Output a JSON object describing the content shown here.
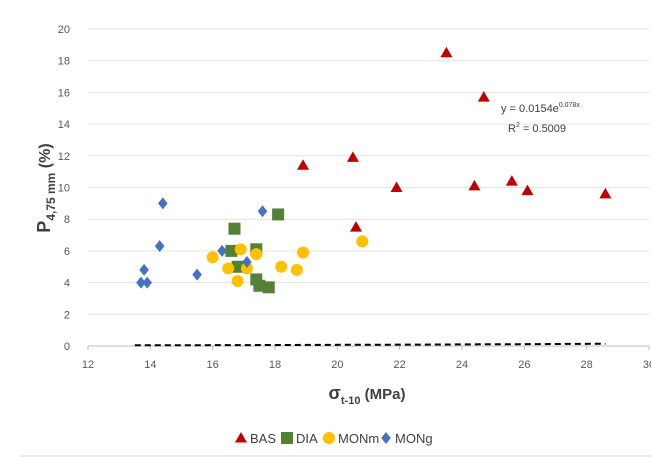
{
  "chart_data": {
    "type": "scatter",
    "xlabel": {
      "main": "σ",
      "sub": "t-10",
      "rest": " (MPa)"
    },
    "ylabel": {
      "main": "P",
      "sub": "4,75 mm",
      "rest": " (%)"
    },
    "xlim": [
      12,
      30
    ],
    "ylim": [
      0,
      20
    ],
    "xticks": [
      12,
      14,
      16,
      18,
      20,
      22,
      24,
      26,
      28,
      30
    ],
    "yticks": [
      0,
      2,
      4,
      6,
      8,
      10,
      12,
      14,
      16,
      18,
      20
    ],
    "grid": "horizontal",
    "legend_position": "bottom",
    "series": [
      {
        "name": "BAS",
        "marker": "triangle",
        "color": "#C00000",
        "points": [
          [
            18.9,
            11.4
          ],
          [
            20.5,
            11.9
          ],
          [
            20.6,
            7.5
          ],
          [
            21.9,
            10.0
          ],
          [
            23.5,
            18.5
          ],
          [
            24.4,
            10.1
          ],
          [
            24.7,
            15.7
          ],
          [
            25.6,
            10.4
          ],
          [
            26.1,
            9.8
          ],
          [
            28.6,
            9.6
          ]
        ]
      },
      {
        "name": "DIA",
        "marker": "square",
        "color": "#548235",
        "points": [
          [
            16.6,
            6.0
          ],
          [
            16.7,
            7.4
          ],
          [
            16.8,
            5.0
          ],
          [
            17.4,
            6.1
          ],
          [
            17.5,
            3.8
          ],
          [
            17.4,
            4.2
          ],
          [
            17.8,
            3.7
          ],
          [
            18.1,
            8.3
          ]
        ]
      },
      {
        "name": "MONm",
        "marker": "circle",
        "color": "#FFC000",
        "points": [
          [
            16.0,
            5.6
          ],
          [
            16.5,
            4.9
          ],
          [
            16.8,
            4.1
          ],
          [
            16.9,
            6.1
          ],
          [
            17.1,
            4.9
          ],
          [
            17.4,
            5.8
          ],
          [
            18.2,
            5.0
          ],
          [
            18.7,
            4.8
          ],
          [
            18.9,
            5.9
          ],
          [
            20.8,
            6.6
          ]
        ]
      },
      {
        "name": "MONg",
        "marker": "diamond",
        "color": "#4472C4",
        "points": [
          [
            13.7,
            4.0
          ],
          [
            13.8,
            4.8
          ],
          [
            13.9,
            4.0
          ],
          [
            14.3,
            6.3
          ],
          [
            14.4,
            9.0
          ],
          [
            15.5,
            4.5
          ],
          [
            16.3,
            6.0
          ],
          [
            17.1,
            5.3
          ],
          [
            17.6,
            8.5
          ]
        ]
      }
    ],
    "trendline": {
      "type": "exponential",
      "a": 0.0154,
      "b": 0.078,
      "x_range": [
        13.5,
        28.6
      ],
      "equation_text": {
        "base": "y = 0.0154e",
        "exponent": "0.078x"
      },
      "r2_text": {
        "pre": "R",
        "sup": "2",
        "post": " = 0.5009"
      }
    }
  }
}
